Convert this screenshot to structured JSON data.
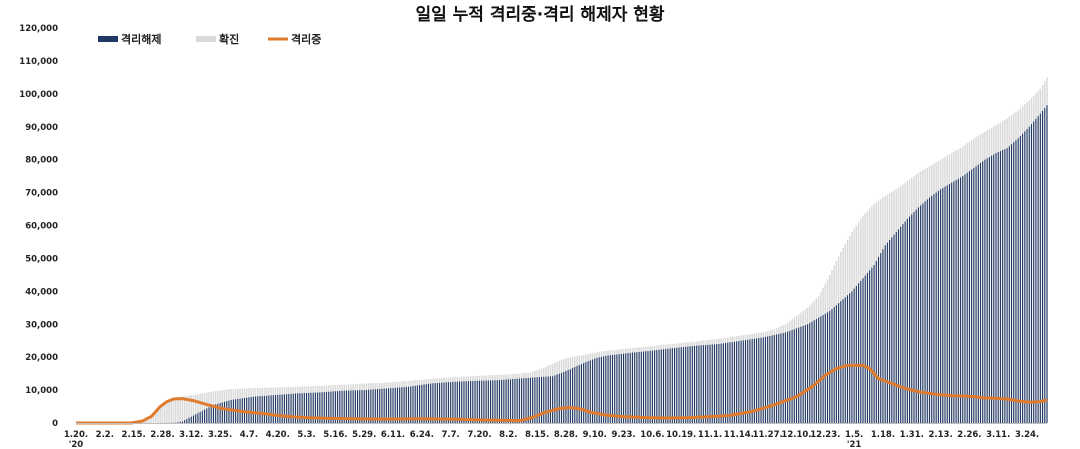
{
  "chart_data": {
    "type": "bar",
    "title": "일일 누적 격리중·격리 해제자 현황",
    "xlabel": "",
    "ylabel": "",
    "ylim": [
      0,
      120000
    ],
    "y_ticks": [
      "0",
      "10,000",
      "20,000",
      "30,000",
      "40,000",
      "50,000",
      "60,000",
      "70,000",
      "80,000",
      "90,000",
      "100,000",
      "110,000",
      "120,000"
    ],
    "y_tick_values": [
      0,
      10000,
      20000,
      30000,
      40000,
      50000,
      60000,
      70000,
      80000,
      90000,
      100000,
      110000,
      120000
    ],
    "x_tick_labels": [
      "1.20.",
      "2.2.",
      "2.15.",
      "2.28.",
      "3.12.",
      "3.25.",
      "4.7.",
      "4.20.",
      "5.3.",
      "5.16.",
      "5.29.",
      "6.11.",
      "6.24.",
      "7.7.",
      "7.20.",
      "8.2.",
      "8.15.",
      "8.28.",
      "9.10.",
      "9.23.",
      "10.6.",
      "10.19.",
      "11.1.",
      "11.14.",
      "11.27.",
      "12.10.",
      "12.23.",
      "1.5.",
      "1.18.",
      "1.31.",
      "2.13.",
      "2.26.",
      "3.11.",
      "3.24."
    ],
    "year_labels": [
      {
        "label": "'20",
        "at_tick": 0
      },
      {
        "label": "'21",
        "at_tick": 27
      }
    ],
    "legend": {
      "position": "top-left",
      "entries": [
        {
          "name": "격리해제",
          "key": "released",
          "style": "bar"
        },
        {
          "name": "확진",
          "key": "confirmed",
          "style": "bar"
        },
        {
          "name": "격리중",
          "key": "isolating",
          "style": "line"
        }
      ]
    },
    "grid": false,
    "x_range_days": [
      0,
      438
    ],
    "x_tick_interval_days": 13,
    "series": [
      {
        "key": "confirmed",
        "color": "#d9d9d9",
        "points": [
          [
            0,
            1
          ],
          [
            25,
            28
          ],
          [
            28,
            100
          ],
          [
            33,
            1000
          ],
          [
            36,
            4000
          ],
          [
            40,
            6000
          ],
          [
            44,
            7500
          ],
          [
            48,
            8000
          ],
          [
            55,
            8800
          ],
          [
            62,
            9600
          ],
          [
            70,
            10300
          ],
          [
            80,
            10600
          ],
          [
            90,
            10800
          ],
          [
            100,
            11000
          ],
          [
            110,
            11300
          ],
          [
            120,
            11600
          ],
          [
            130,
            12000
          ],
          [
            140,
            12300
          ],
          [
            150,
            12800
          ],
          [
            160,
            13400
          ],
          [
            170,
            13900
          ],
          [
            180,
            14300
          ],
          [
            190,
            14600
          ],
          [
            200,
            15000
          ],
          [
            205,
            15400
          ],
          [
            210,
            16500
          ],
          [
            215,
            18000
          ],
          [
            220,
            19500
          ],
          [
            225,
            20200
          ],
          [
            230,
            20800
          ],
          [
            235,
            21500
          ],
          [
            240,
            22000
          ],
          [
            250,
            22700
          ],
          [
            260,
            23400
          ],
          [
            270,
            24100
          ],
          [
            280,
            24800
          ],
          [
            290,
            25600
          ],
          [
            300,
            26600
          ],
          [
            310,
            27600
          ],
          [
            315,
            28500
          ],
          [
            320,
            30000
          ],
          [
            325,
            32500
          ],
          [
            330,
            35000
          ],
          [
            335,
            38500
          ],
          [
            340,
            45000
          ],
          [
            345,
            52000
          ],
          [
            350,
            58000
          ],
          [
            355,
            63000
          ],
          [
            360,
            66500
          ],
          [
            365,
            69000
          ],
          [
            370,
            71000
          ],
          [
            375,
            73500
          ],
          [
            380,
            76000
          ],
          [
            385,
            78000
          ],
          [
            390,
            80000
          ],
          [
            395,
            82000
          ],
          [
            400,
            84000
          ],
          [
            405,
            86500
          ],
          [
            410,
            88500
          ],
          [
            415,
            90500
          ],
          [
            420,
            92500
          ],
          [
            425,
            95000
          ],
          [
            430,
            98000
          ],
          [
            435,
            101500
          ],
          [
            438,
            105000
          ]
        ]
      },
      {
        "key": "released",
        "color": "#1f3864",
        "points": [
          [
            0,
            0
          ],
          [
            40,
            0
          ],
          [
            45,
            100
          ],
          [
            48,
            500
          ],
          [
            55,
            3000
          ],
          [
            62,
            5500
          ],
          [
            70,
            7000
          ],
          [
            80,
            8000
          ],
          [
            90,
            8500
          ],
          [
            100,
            9000
          ],
          [
            110,
            9300
          ],
          [
            120,
            9800
          ],
          [
            130,
            10000
          ],
          [
            140,
            10500
          ],
          [
            150,
            11000
          ],
          [
            160,
            12000
          ],
          [
            170,
            12500
          ],
          [
            180,
            12800
          ],
          [
            190,
            13000
          ],
          [
            200,
            13500
          ],
          [
            210,
            14000
          ],
          [
            215,
            14200
          ],
          [
            220,
            15500
          ],
          [
            225,
            17000
          ],
          [
            230,
            18500
          ],
          [
            235,
            19800
          ],
          [
            240,
            20500
          ],
          [
            250,
            21300
          ],
          [
            260,
            22000
          ],
          [
            270,
            22800
          ],
          [
            280,
            23500
          ],
          [
            290,
            24000
          ],
          [
            300,
            25000
          ],
          [
            310,
            26000
          ],
          [
            320,
            27500
          ],
          [
            330,
            30000
          ],
          [
            340,
            34000
          ],
          [
            350,
            40000
          ],
          [
            355,
            44000
          ],
          [
            360,
            48000
          ],
          [
            365,
            54000
          ],
          [
            370,
            58000
          ],
          [
            375,
            62000
          ],
          [
            380,
            65500
          ],
          [
            385,
            68500
          ],
          [
            390,
            71000
          ],
          [
            395,
            73000
          ],
          [
            400,
            75000
          ],
          [
            405,
            77500
          ],
          [
            410,
            80000
          ],
          [
            415,
            82000
          ],
          [
            420,
            83500
          ],
          [
            425,
            86500
          ],
          [
            430,
            90000
          ],
          [
            435,
            94000
          ],
          [
            438,
            96500
          ]
        ]
      },
      {
        "key": "isolating",
        "color": "#e07b2e",
        "points": [
          [
            0,
            0
          ],
          [
            25,
            0
          ],
          [
            30,
            600
          ],
          [
            34,
            2000
          ],
          [
            38,
            5000
          ],
          [
            41,
            6500
          ],
          [
            44,
            7300
          ],
          [
            48,
            7400
          ],
          [
            53,
            6800
          ],
          [
            58,
            5800
          ],
          [
            65,
            4500
          ],
          [
            75,
            3500
          ],
          [
            85,
            2800
          ],
          [
            95,
            2000
          ],
          [
            105,
            1600
          ],
          [
            115,
            1400
          ],
          [
            125,
            1300
          ],
          [
            135,
            1200
          ],
          [
            145,
            1200
          ],
          [
            155,
            1300
          ],
          [
            165,
            1200
          ],
          [
            175,
            1100
          ],
          [
            185,
            900
          ],
          [
            195,
            800
          ],
          [
            200,
            700
          ],
          [
            205,
            1500
          ],
          [
            212,
            3300
          ],
          [
            218,
            4400
          ],
          [
            223,
            4700
          ],
          [
            228,
            4200
          ],
          [
            232,
            3300
          ],
          [
            238,
            2500
          ],
          [
            245,
            2000
          ],
          [
            255,
            1700
          ],
          [
            265,
            1500
          ],
          [
            275,
            1600
          ],
          [
            285,
            1900
          ],
          [
            295,
            2300
          ],
          [
            305,
            3500
          ],
          [
            315,
            5500
          ],
          [
            325,
            8000
          ],
          [
            332,
            11000
          ],
          [
            338,
            14500
          ],
          [
            343,
            16500
          ],
          [
            348,
            17500
          ],
          [
            355,
            17500
          ],
          [
            358,
            16500
          ],
          [
            362,
            13500
          ],
          [
            368,
            12000
          ],
          [
            374,
            10500
          ],
          [
            380,
            9500
          ],
          [
            388,
            8700
          ],
          [
            395,
            8300
          ],
          [
            400,
            8200
          ],
          [
            405,
            8000
          ],
          [
            410,
            7600
          ],
          [
            415,
            7500
          ],
          [
            420,
            7300
          ],
          [
            425,
            6700
          ],
          [
            430,
            6300
          ],
          [
            435,
            6500
          ],
          [
            438,
            7000
          ]
        ]
      }
    ]
  }
}
